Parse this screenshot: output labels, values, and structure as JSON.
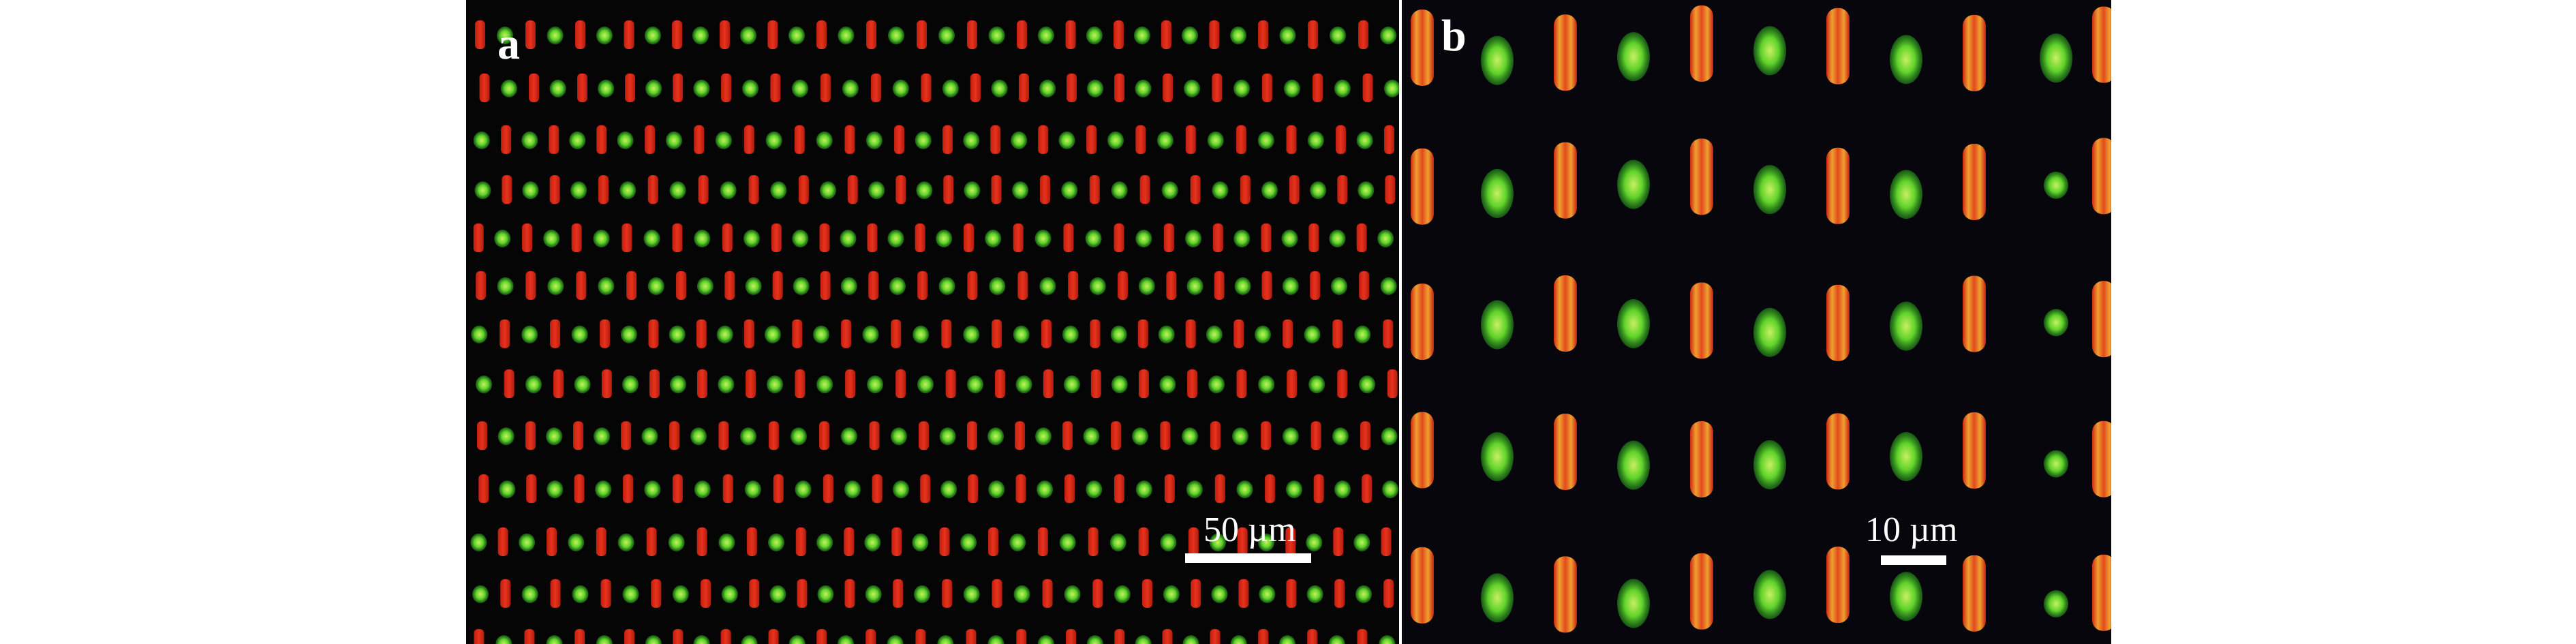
{
  "panels": {
    "a": {
      "label": "a",
      "scale_bar_text": "50 µm"
    },
    "b": {
      "label": "b",
      "scale_bar_text": "10 µm"
    }
  },
  "colors": {
    "background": "#050505",
    "red_cell": "#e8321e",
    "green_cell": "#5fd22a",
    "orange_rim": "#f0a030",
    "divider": "#ffffff",
    "text": "#ffffff"
  }
}
